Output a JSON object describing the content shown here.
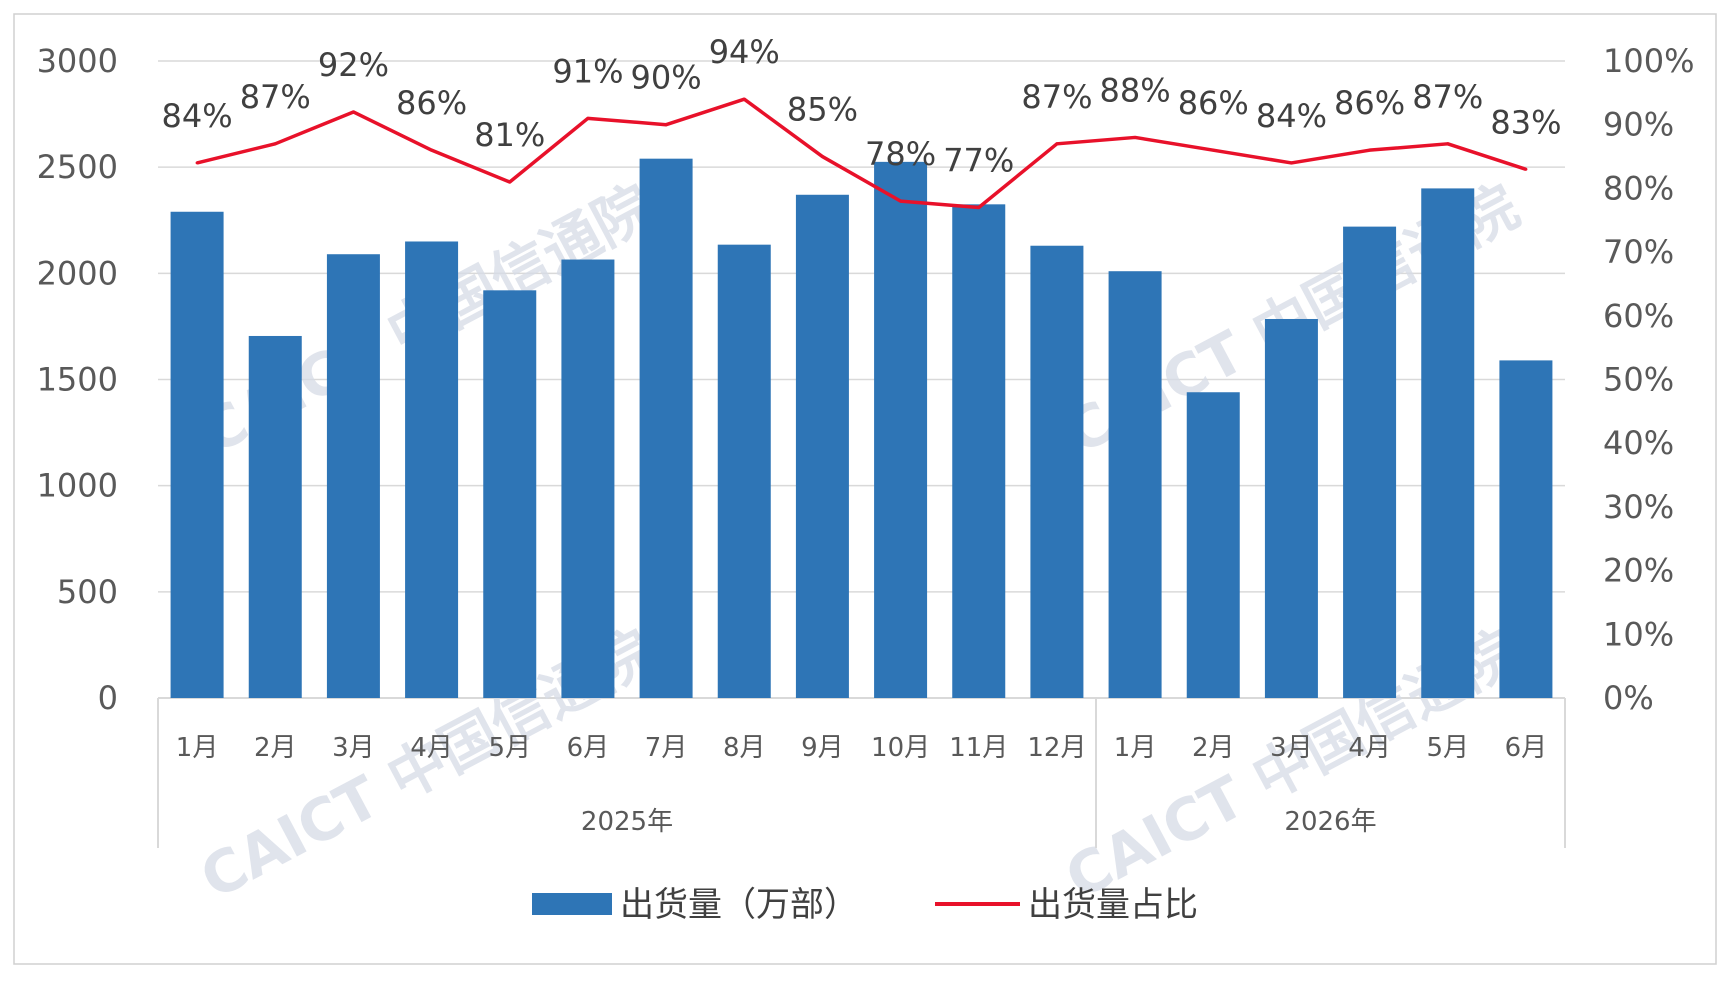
{
  "colors": {
    "bar": "#2e75b6",
    "line": "#e8112a",
    "grid": "#d9d9d9",
    "axis_text": "#595959",
    "label_text": "#404040",
    "frame": "#d0d0d0",
    "watermark": "#d6dbe6"
  },
  "watermark": {
    "text": "CAICT 中国信通院",
    "text_latin": "CAICT",
    "text_cjk": "中国信通院"
  },
  "chart_data": {
    "type": "bar",
    "categories": [
      "1月",
      "2月",
      "3月",
      "4月",
      "5月",
      "6月",
      "7月",
      "8月",
      "9月",
      "10月",
      "11月",
      "12月",
      "1月",
      "2月",
      "3月",
      "4月",
      "5月",
      "6月"
    ],
    "groups": [
      {
        "label": "2025年",
        "start": 0,
        "end": 11
      },
      {
        "label": "2026年",
        "start": 12,
        "end": 17
      }
    ],
    "series": [
      {
        "name": "出货量（万部）",
        "type": "bar",
        "axis": "left",
        "values": [
          2290,
          1705,
          2090,
          2150,
          1920,
          2065,
          2540,
          2135,
          2370,
          2525,
          2325,
          2130,
          2010,
          1440,
          1785,
          2220,
          2400,
          1590
        ]
      },
      {
        "name": "出货量占比",
        "type": "line",
        "axis": "right",
        "values": [
          84,
          87,
          92,
          86,
          81,
          91,
          90,
          94,
          85,
          78,
          77,
          87,
          88,
          86,
          84,
          86,
          87,
          83
        ],
        "labels": [
          "84%",
          "87%",
          "92%",
          "86%",
          "81%",
          "91%",
          "90%",
          "94%",
          "85%",
          "78%",
          "77%",
          "87%",
          "88%",
          "86%",
          "84%",
          "86%",
          "87%",
          "83%"
        ]
      }
    ],
    "y_left": {
      "min": 0,
      "max": 3000,
      "ticks": [
        "0",
        "500",
        "1000",
        "1500",
        "2000",
        "2500",
        "3000"
      ]
    },
    "y_right": {
      "min": 0,
      "max": 100,
      "ticks": [
        "0%",
        "10%",
        "20%",
        "30%",
        "40%",
        "50%",
        "60%",
        "70%",
        "80%",
        "90%",
        "100%"
      ]
    },
    "grid": true,
    "legend": {
      "position": "bottom",
      "entries": [
        "出货量（万部）",
        "出货量占比"
      ]
    }
  }
}
